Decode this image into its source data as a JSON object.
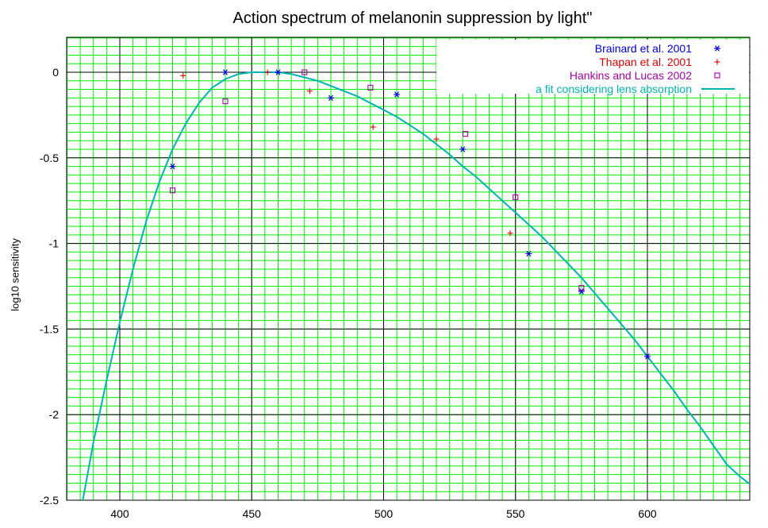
{
  "chart_data": {
    "type": "scatter",
    "title": "Action spectrum of melanonin suppression by light\"",
    "xlabel": "",
    "ylabel": "log10 sensitivity",
    "xlim": [
      380,
      640
    ],
    "ylim": [
      -2.5,
      0.2
    ],
    "grid": true,
    "legend_position": "top-right",
    "colors": {
      "grid_minor": "#00ee00",
      "grid_major": "#000000",
      "brainard": "#0000dd",
      "thapan": "#dd0000",
      "hankins": "#aa00aa",
      "fit": "#00b4b4"
    },
    "x_ticks": [
      400,
      450,
      500,
      550,
      600
    ],
    "y_ticks": [
      0,
      -0.5,
      -1,
      -1.5,
      -2,
      -2.5
    ],
    "series": [
      {
        "name": "Brainard et al. 2001",
        "marker": "asterisk",
        "x": [
          420,
          440,
          460,
          480,
          505,
          530,
          555,
          575,
          600
        ],
        "y": [
          -0.55,
          0.0,
          0.0,
          -0.15,
          -0.13,
          -0.45,
          -1.06,
          -1.28,
          -1.66
        ]
      },
      {
        "name": "Thapan et al. 2001",
        "marker": "plus",
        "x": [
          424,
          456,
          472,
          496,
          520,
          548
        ],
        "y": [
          -0.02,
          0.0,
          -0.11,
          -0.32,
          -0.39,
          -0.94
        ]
      },
      {
        "name": "Hankins and Lucas 2002",
        "marker": "square",
        "x": [
          420,
          440,
          470,
          495,
          531,
          550,
          575
        ],
        "y": [
          -0.69,
          -0.17,
          0.0,
          -0.09,
          -0.36,
          -0.73,
          -1.26
        ]
      },
      {
        "name": "a fit considering lens absorption",
        "marker": "line",
        "x": [
          386,
          390,
          395,
          400,
          405,
          410,
          415,
          420,
          425,
          430,
          435,
          440,
          445,
          450,
          455,
          460,
          465,
          470,
          475,
          480,
          485,
          490,
          495,
          500,
          505,
          510,
          515,
          520,
          525,
          530,
          535,
          540,
          545,
          550,
          555,
          560,
          565,
          570,
          575,
          580,
          585,
          590,
          595,
          600,
          605,
          610,
          615,
          620,
          625,
          630,
          635,
          640
        ],
        "y": [
          -2.5,
          -2.16,
          -1.8,
          -1.46,
          -1.15,
          -0.87,
          -0.64,
          -0.45,
          -0.3,
          -0.18,
          -0.09,
          -0.04,
          -0.01,
          0.0,
          0.0,
          0.0,
          -0.01,
          -0.03,
          -0.05,
          -0.08,
          -0.11,
          -0.14,
          -0.18,
          -0.22,
          -0.26,
          -0.31,
          -0.36,
          -0.42,
          -0.48,
          -0.55,
          -0.61,
          -0.68,
          -0.75,
          -0.82,
          -0.89,
          -0.96,
          -1.04,
          -1.12,
          -1.2,
          -1.29,
          -1.38,
          -1.47,
          -1.56,
          -1.66,
          -1.76,
          -1.86,
          -1.97,
          -2.07,
          -2.18,
          -2.29,
          -2.36,
          -2.42
        ]
      }
    ]
  }
}
